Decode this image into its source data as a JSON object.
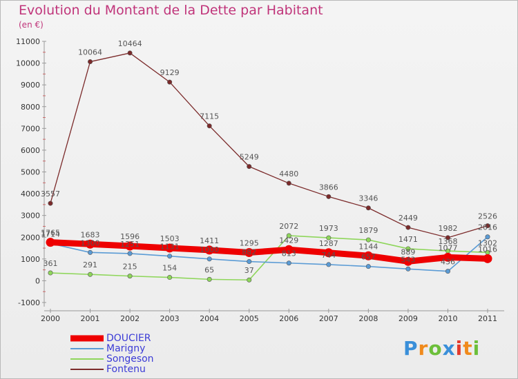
{
  "title": "Evolution du Montant de la Dette par Habitant",
  "unit": "(en €)",
  "logo": "Proxiti",
  "chart_data": {
    "type": "line",
    "categories": [
      "2000",
      "2001",
      "2002",
      "2003",
      "2004",
      "2005",
      "2006",
      "2007",
      "2008",
      "2009",
      "2010",
      "2011"
    ],
    "ylim": [
      -1000,
      11000
    ],
    "yticks": [
      -1000,
      0,
      1000,
      2000,
      3000,
      4000,
      5000,
      6000,
      7000,
      8000,
      9000,
      10000,
      11000
    ],
    "grid": false,
    "legend_position": "bottom-left",
    "series": [
      {
        "name": "DOUCIER",
        "color": "#ee0000",
        "values": [
          1765,
          1683,
          1596,
          1503,
          1411,
          1295,
          1429,
          1287,
          1144,
          889,
          1077,
          1016
        ]
      },
      {
        "name": "Marigny",
        "color": "#5a9bd5",
        "values": [
          1714,
          1300,
          1251,
          1131,
          1000,
          882,
          813,
          744,
          657,
          543,
          436,
          2016
        ]
      },
      {
        "name": "Songeson",
        "color": "#8ed65a",
        "values": [
          361,
          291,
          215,
          154,
          65,
          37,
          2072,
          1973,
          1879,
          1471,
          1368,
          1302
        ]
      },
      {
        "name": "Fontenu",
        "color": "#7b2a2a",
        "values": [
          3557,
          10064,
          10464,
          9129,
          7115,
          5249,
          4480,
          3866,
          3346,
          2449,
          1982,
          2526
        ]
      }
    ],
    "data_labels": [
      [
        "1765",
        "1683",
        "1596",
        "1503",
        "1411",
        "1295",
        "1429",
        "1287",
        "1144",
        "889",
        "1077",
        "1016"
      ],
      [
        "1714",
        "1300",
        "1251",
        "1131",
        "1000",
        "882",
        "813",
        "744",
        "657",
        "543",
        "436",
        "2016"
      ],
      [
        "361",
        "291",
        "215",
        "154",
        "65",
        "37",
        "2072",
        "1973",
        "1879",
        "1471",
        "1368",
        "1302"
      ],
      [
        "3557",
        "10064",
        "10464",
        "9129",
        "7115",
        "5249",
        "4480",
        "3866",
        "3346",
        "2449",
        "1982",
        "2526"
      ]
    ]
  }
}
